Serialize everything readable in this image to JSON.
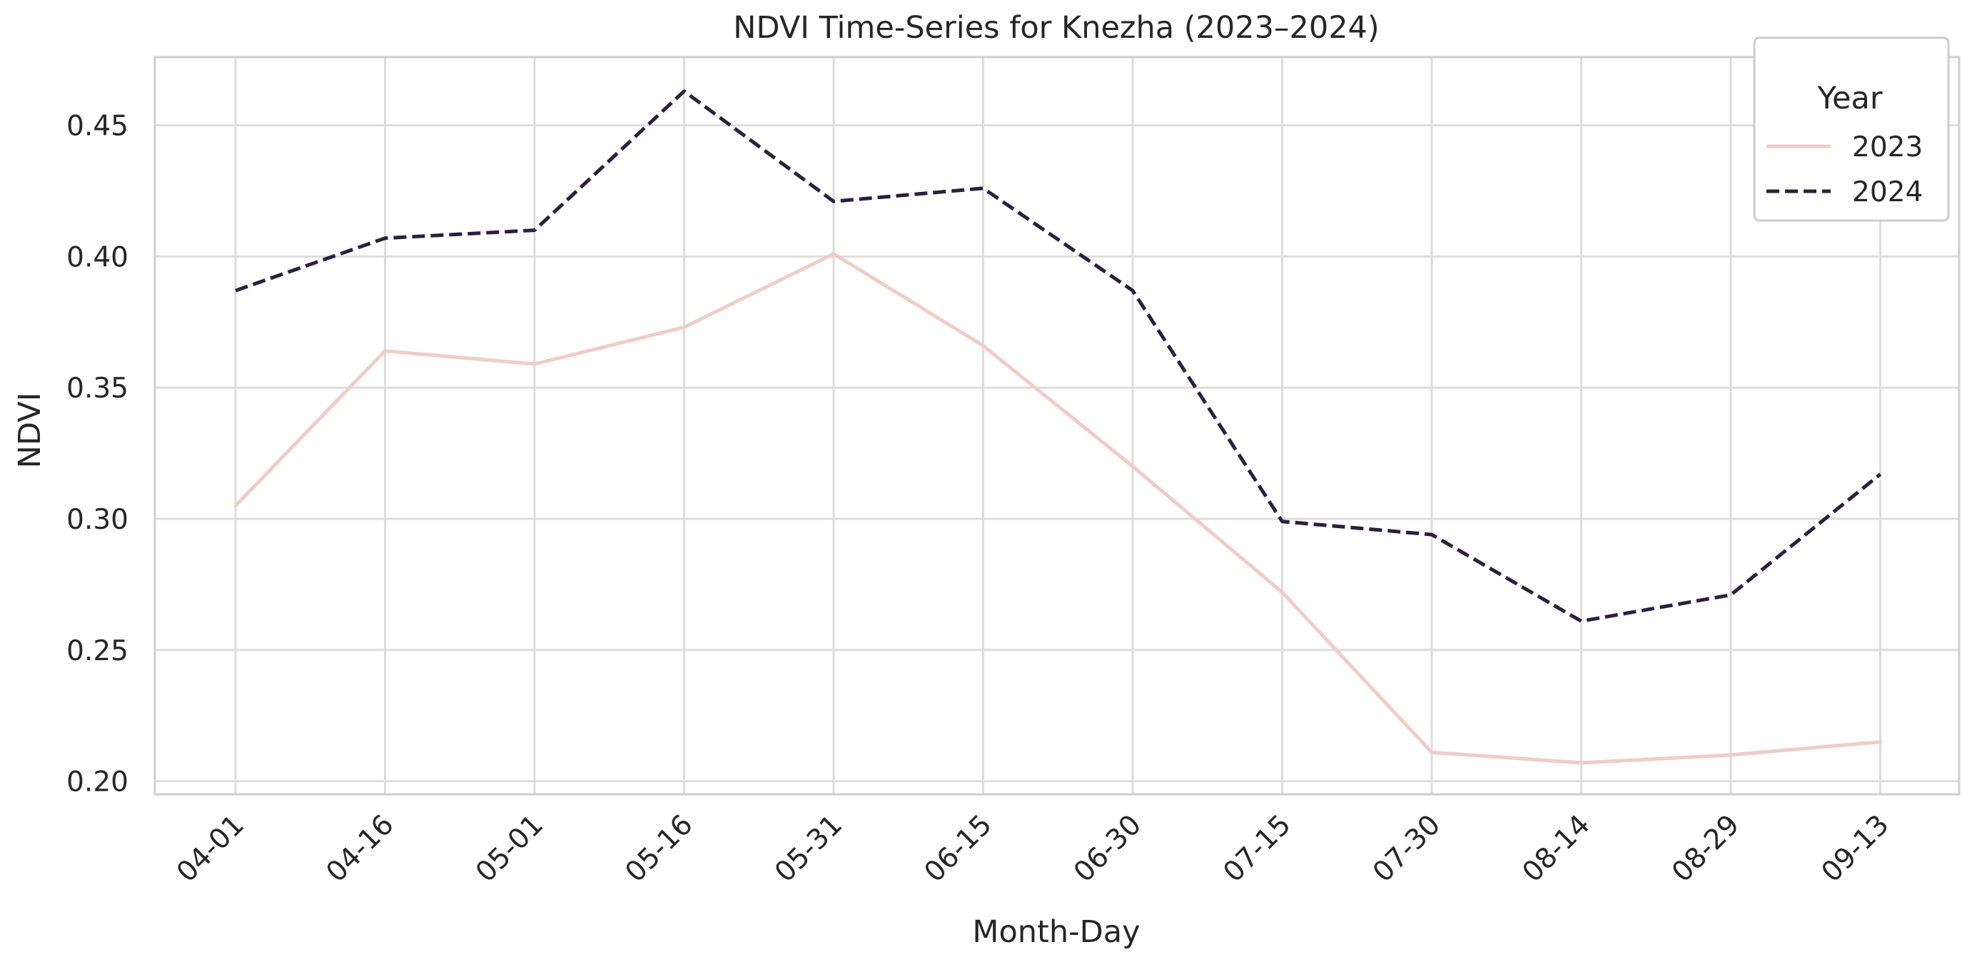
{
  "chart_data": {
    "type": "line",
    "title": "NDVI Time-Series for Knezha (2023–2024)",
    "xlabel": "Month-Day",
    "ylabel": "NDVI",
    "categories": [
      "04-01",
      "04-16",
      "05-01",
      "05-16",
      "05-31",
      "06-15",
      "06-30",
      "07-15",
      "07-30",
      "08-14",
      "08-29",
      "09-13"
    ],
    "ylim": [
      0.195,
      0.476
    ],
    "yticks": [
      0.2,
      0.25,
      0.3,
      0.35,
      0.4,
      0.45
    ],
    "ytick_labels": [
      "0.20",
      "0.25",
      "0.30",
      "0.35",
      "0.40",
      "0.45"
    ],
    "grid": true,
    "legend": {
      "title": "Year",
      "position": "top-right"
    },
    "series": [
      {
        "name": "2023",
        "color": "#efcdc6",
        "dash": "solid",
        "values": [
          0.305,
          0.364,
          0.359,
          0.373,
          0.401,
          0.366,
          0.32,
          0.272,
          0.211,
          0.207,
          0.21,
          0.215
        ]
      },
      {
        "name": "2024",
        "color": "#2c1e3d",
        "dash": "dashed",
        "values": [
          0.387,
          0.407,
          0.41,
          0.463,
          0.421,
          0.426,
          0.387,
          0.299,
          0.294,
          0.261,
          0.271,
          0.317
        ]
      }
    ]
  }
}
